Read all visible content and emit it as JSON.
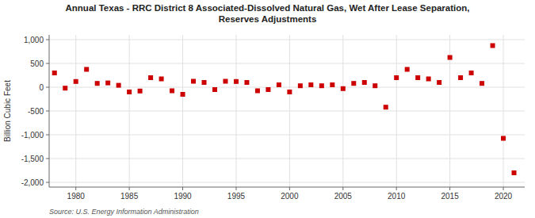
{
  "chart_data": {
    "type": "scatter",
    "title": "Annual Texas - RRC District 8 Associated-Dissolved Natural Gas, Wet After Lease Separation,\nReserves Adjustments",
    "ylabel": "Billion Cubic Feet",
    "annotations": [
      "Source: U.S. Energy Information Administration"
    ],
    "x": [
      1978,
      1979,
      1980,
      1981,
      1982,
      1983,
      1984,
      1985,
      1986,
      1987,
      1988,
      1989,
      1990,
      1991,
      1992,
      1993,
      1994,
      1995,
      1996,
      1997,
      1998,
      1999,
      2000,
      2001,
      2002,
      2003,
      2004,
      2005,
      2006,
      2007,
      2008,
      2009,
      2010,
      2011,
      2012,
      2013,
      2014,
      2015,
      2016,
      2017,
      2018,
      2019,
      2020,
      2021
    ],
    "values": [
      300,
      -20,
      120,
      375,
      80,
      90,
      40,
      -100,
      -80,
      200,
      175,
      -75,
      -150,
      125,
      100,
      -50,
      125,
      120,
      100,
      -75,
      -50,
      50,
      -100,
      30,
      50,
      30,
      50,
      -30,
      80,
      100,
      30,
      -420,
      200,
      375,
      200,
      175,
      100,
      625,
      200,
      300,
      80,
      875,
      -1075,
      -1800
    ],
    "color": "#cc0000",
    "marker": "square",
    "xlim": [
      1977.5,
      2022
    ],
    "xticks": [
      1980,
      1985,
      1990,
      1995,
      2000,
      2005,
      2010,
      2015,
      2020
    ],
    "ylim": [
      -2100,
      1100
    ],
    "yticks": [
      {
        "value": -2000,
        "label": "-2,000"
      },
      {
        "value": -1500,
        "label": "-1,500"
      },
      {
        "value": -1000,
        "label": "-1,000"
      },
      -500,
      0,
      500,
      {
        "value": 1000,
        "label": "1,000"
      }
    ],
    "grid": true
  }
}
